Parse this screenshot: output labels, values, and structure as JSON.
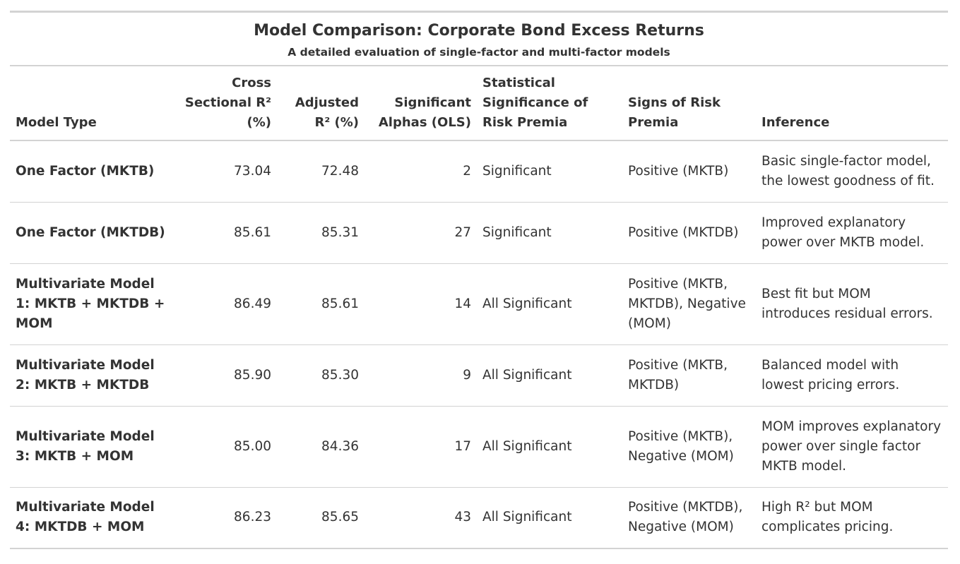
{
  "table": {
    "title": "Model Comparison: Corporate Bond Excess Returns",
    "subtitle": "A detailed evaluation of single-factor and multi-factor models",
    "columns": [
      {
        "key": "model",
        "line1": "",
        "line2": "",
        "line3": "Model Type",
        "align": "l"
      },
      {
        "key": "r2",
        "line1": "Cross",
        "line2": "Sectional R²",
        "line3": "(%)",
        "align": "r"
      },
      {
        "key": "adj",
        "line1": "",
        "line2": "Adjusted",
        "line3": "R² (%)",
        "align": "r"
      },
      {
        "key": "alphas",
        "line1": "",
        "line2": "Significant",
        "line3": "Alphas (OLS)",
        "align": "r"
      },
      {
        "key": "sig",
        "line1": "Statistical",
        "line2": "Significance of",
        "line3": "Risk Premia",
        "align": "l"
      },
      {
        "key": "signs",
        "line1": "",
        "line2": "Signs of Risk",
        "line3": "Premia",
        "align": "l"
      },
      {
        "key": "inference",
        "line1": "",
        "line2": "",
        "line3": "Inference",
        "align": "l"
      }
    ],
    "rows": [
      {
        "model": "One Factor (MKTB)",
        "r2": "73.04",
        "adj": "72.48",
        "alphas": "2",
        "sig": "Significant",
        "signs": "Positive (MKTB)",
        "inference": "Basic single-factor model, the lowest goodness of fit."
      },
      {
        "model": "One Factor (MKTDB)",
        "r2": "85.61",
        "adj": "85.31",
        "alphas": "27",
        "sig": "Significant",
        "signs": "Positive (MKTDB)",
        "inference": "Improved explanatory power over MKTB model."
      },
      {
        "model": "Multivariate Model 1: MKTB + MKTDB + MOM",
        "r2": "86.49",
        "adj": "85.61",
        "alphas": "14",
        "sig": "All Significant",
        "signs": "Positive (MKTB, MKTDB), Negative (MOM)",
        "inference": "Best fit but MOM introduces residual errors."
      },
      {
        "model": "Multivariate Model 2: MKTB + MKTDB",
        "r2": "85.90",
        "adj": "85.30",
        "alphas": "9",
        "sig": "All Significant",
        "signs": "Positive (MKTB, MKTDB)",
        "inference": "Balanced model with lowest pricing errors."
      },
      {
        "model": "Multivariate Model 3: MKTB + MOM",
        "r2": "85.00",
        "adj": "84.36",
        "alphas": "17",
        "sig": "All Significant",
        "signs": "Positive (MKTB), Negative (MOM)",
        "inference": "MOM improves explanatory power over single factor MKTB model."
      },
      {
        "model": "Multivariate Model 4: MKTDB + MOM",
        "r2": "86.23",
        "adj": "85.65",
        "alphas": "43",
        "sig": "All Significant",
        "signs": "Positive (MKTDB), Negative (MOM)",
        "inference": "High R² but MOM complicates pricing."
      }
    ]
  }
}
